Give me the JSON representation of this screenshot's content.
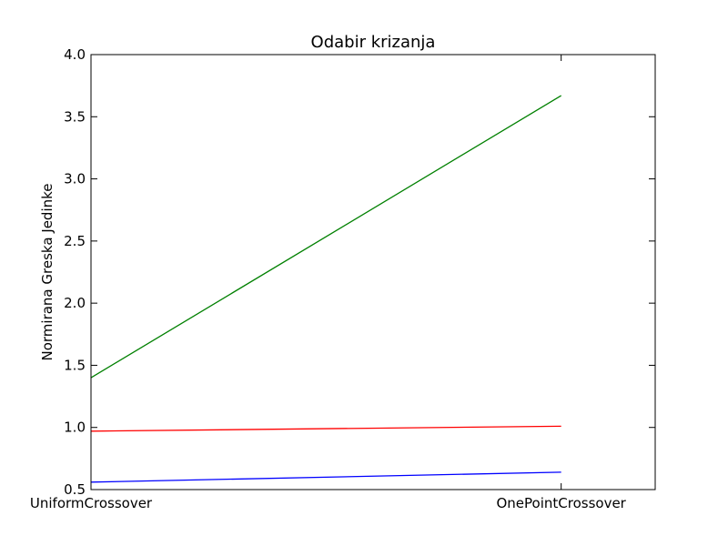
{
  "chart_data": {
    "type": "line",
    "title": "Odabir krizanja",
    "xlabel": "",
    "ylabel": "Normirana Greska Jedinke",
    "categories": [
      "UniformCrossover",
      "OnePointCrossover"
    ],
    "xlim": [
      0,
      1.2
    ],
    "ylim": [
      0.5,
      4.0
    ],
    "yticks": [
      "0.5",
      "1.0",
      "1.5",
      "2.0",
      "2.5",
      "3.0",
      "3.5",
      "4.0"
    ],
    "grid": false,
    "series": [
      {
        "color": "#0000ff",
        "values": [
          0.56,
          0.64
        ]
      },
      {
        "color": "#ff0000",
        "values": [
          0.97,
          1.01
        ]
      },
      {
        "color": "#008000",
        "values": [
          1.4,
          3.67
        ]
      }
    ]
  }
}
